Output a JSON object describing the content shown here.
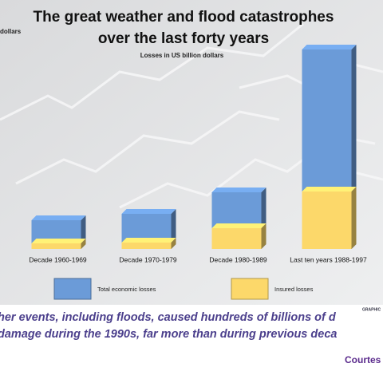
{
  "chart_data": {
    "type": "bar",
    "title": [
      "The great weather and flood catastrophes",
      "over the last forty years"
    ],
    "subtitle": "Losses in US billion dollars",
    "axis_fragment": "dollars",
    "categories": [
      "Decade 1960-1969",
      "Decade 1970-1979",
      "Decade 1980-1989",
      "Last ten years 1988-1997"
    ],
    "series": [
      {
        "name": "Total economic losses",
        "color": "#6b9bd8",
        "values": [
          72,
          88,
          142,
          500
        ]
      },
      {
        "name": "Insured losses",
        "color": "#fcd86a",
        "values": [
          14,
          16,
          52,
          144
        ]
      }
    ],
    "ylim": [
      0,
      520
    ],
    "logo": "GRAPHIC",
    "caption": [
      "her events, including floods, caused hundreds of billions of d",
      "damage during the 1990s, far more than during previous deca"
    ],
    "credit": "Courtes"
  }
}
